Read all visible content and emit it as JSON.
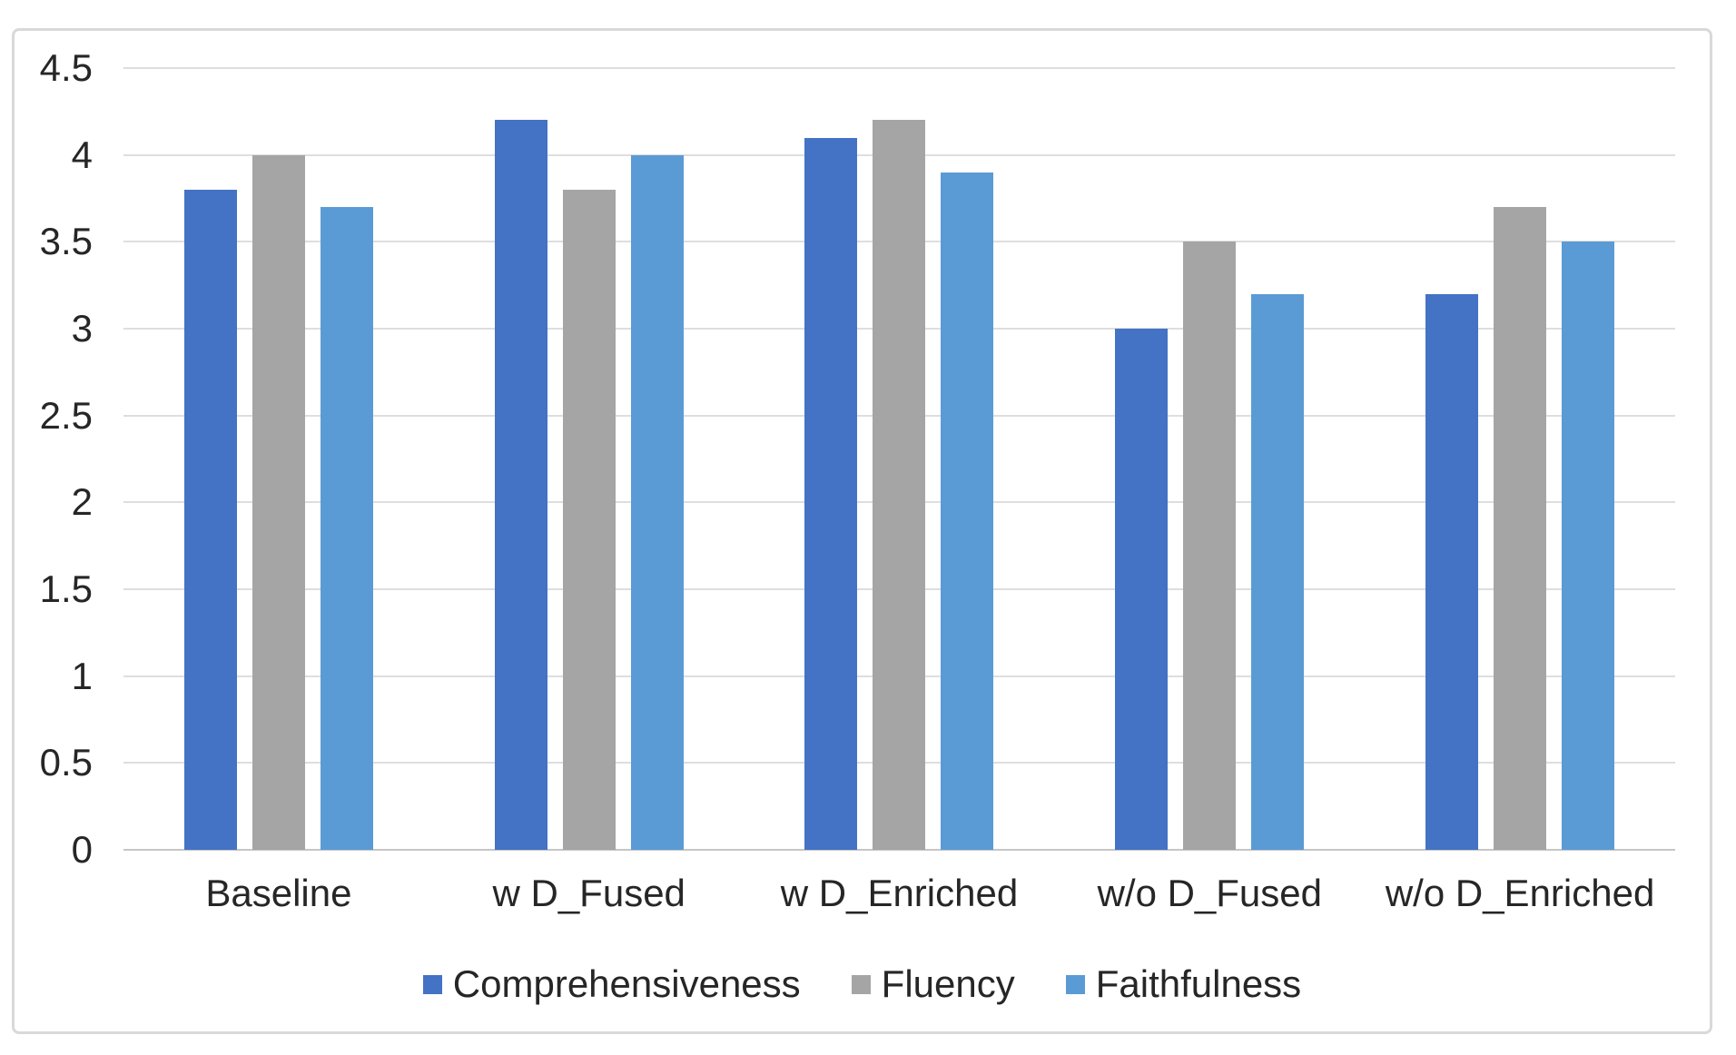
{
  "chart_data": {
    "type": "bar",
    "title": "",
    "categories": [
      "Baseline",
      "w D_Fused",
      "w D_Enriched",
      "w/o D_Fused",
      "w/o D_Enriched"
    ],
    "series": [
      {
        "name": "Comprehensiveness",
        "color": "#4472C4",
        "values": [
          3.8,
          4.2,
          4.1,
          3.0,
          3.2
        ]
      },
      {
        "name": "Fluency",
        "color": "#A5A5A5",
        "values": [
          4.0,
          3.8,
          4.2,
          3.5,
          3.7
        ]
      },
      {
        "name": "Faithfulness",
        "color": "#5B9BD5",
        "values": [
          3.7,
          4.0,
          3.9,
          3.2,
          3.5
        ]
      }
    ],
    "xlabel": "",
    "ylabel": "",
    "ylim": [
      0,
      4.5
    ],
    "yticks": [
      0,
      0.5,
      1,
      1.5,
      2,
      2.5,
      3,
      3.5,
      4,
      4.5
    ],
    "ytick_labels": [
      "0",
      "0.5",
      "1",
      "1.5",
      "2",
      "2.5",
      "3",
      "3.5",
      "4",
      "4.5"
    ],
    "grid": true,
    "legend_position": "bottom",
    "colors": {
      "gridline": "#DEDEDE",
      "axis_zero_line": "#C6C6C6",
      "frame_border": "#D9D9D9",
      "text": "#262626",
      "background": "#FFFFFF"
    }
  }
}
